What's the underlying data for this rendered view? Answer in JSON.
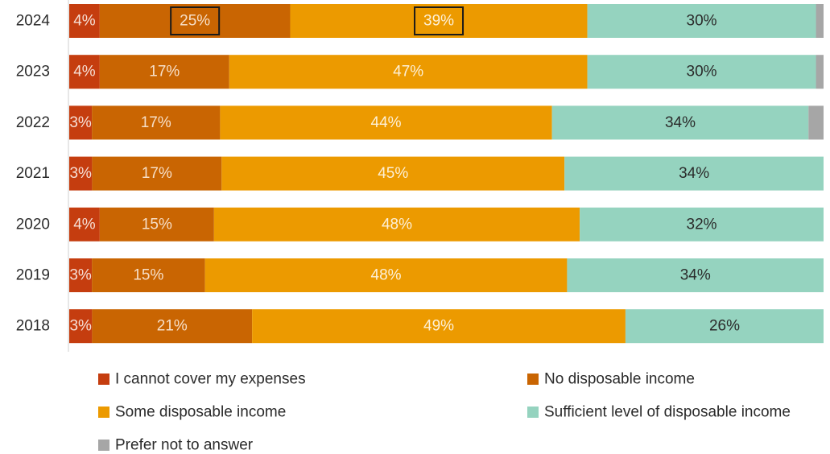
{
  "chart_data": {
    "type": "bar",
    "orientation": "horizontal",
    "stacked": true,
    "normalized_percent": true,
    "categories": [
      "2024",
      "2023",
      "2022",
      "2021",
      "2020",
      "2019",
      "2018"
    ],
    "series": [
      {
        "name": "I cannot cover my expenses",
        "color": "#c53d0f",
        "labelColor": "#f6dfd6",
        "values": [
          4,
          4,
          3,
          3,
          4,
          3,
          3
        ]
      },
      {
        "name": "No disposable income",
        "color": "#c96502",
        "labelColor": "#f7dfc8",
        "values": [
          25,
          17,
          17,
          17,
          15,
          15,
          21
        ]
      },
      {
        "name": "Some disposable income",
        "color": "#ec9a00",
        "labelColor": "#fdf0d6",
        "values": [
          39,
          47,
          44,
          45,
          48,
          48,
          49
        ]
      },
      {
        "name": "Sufficient level of disposable income",
        "color": "#95d3bf",
        "labelColor": "#2b2b2b",
        "values": [
          30,
          30,
          34,
          34,
          32,
          34,
          26
        ]
      },
      {
        "name": "Prefer not to answer",
        "color": "#a6a6a6",
        "labelColor": "#2b2b2b",
        "values": [
          1,
          1,
          2,
          0,
          0,
          0,
          0
        ]
      }
    ],
    "highlighted": [
      {
        "category": "2024",
        "series": "No disposable income"
      },
      {
        "category": "2024",
        "series": "Some disposable income"
      }
    ],
    "legend": {
      "position": "bottom",
      "columns": 2
    },
    "grid": false,
    "xlim": [
      0,
      100
    ]
  }
}
